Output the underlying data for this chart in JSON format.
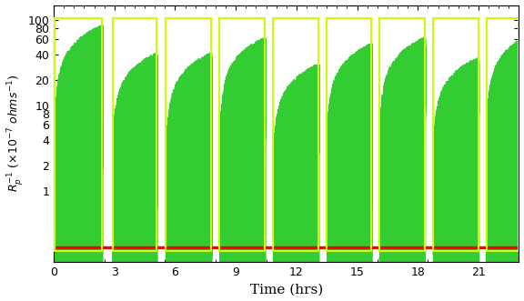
{
  "title": "",
  "xlabel": "Time (hrs)",
  "ylabel": "$R_p^{-1}$ ($\\times10^{-7}$ $ohms^{-1}$)",
  "xlim": [
    0,
    23
  ],
  "ylim_log": [
    0.15,
    150
  ],
  "x_ticks": [
    0,
    3,
    6,
    9,
    12,
    15,
    18,
    21
  ],
  "background_color": "#ffffff",
  "fill_green": "#33CC33",
  "rect_color": "#CCFF00",
  "red_line_color": "#FF0000",
  "n_cycles": 9,
  "cycle_starts": [
    0.05,
    2.9,
    5.55,
    8.2,
    10.85,
    13.5,
    16.1,
    18.75,
    21.4
  ],
  "cycle_ends": [
    2.4,
    5.1,
    7.8,
    10.45,
    13.1,
    15.7,
    18.35,
    21.0,
    23.0
  ],
  "cycle_peaks": [
    90,
    43,
    43,
    65,
    32,
    55,
    65,
    38,
    60
  ],
  "n_spikes": 2000,
  "red_line_y": 0.22
}
